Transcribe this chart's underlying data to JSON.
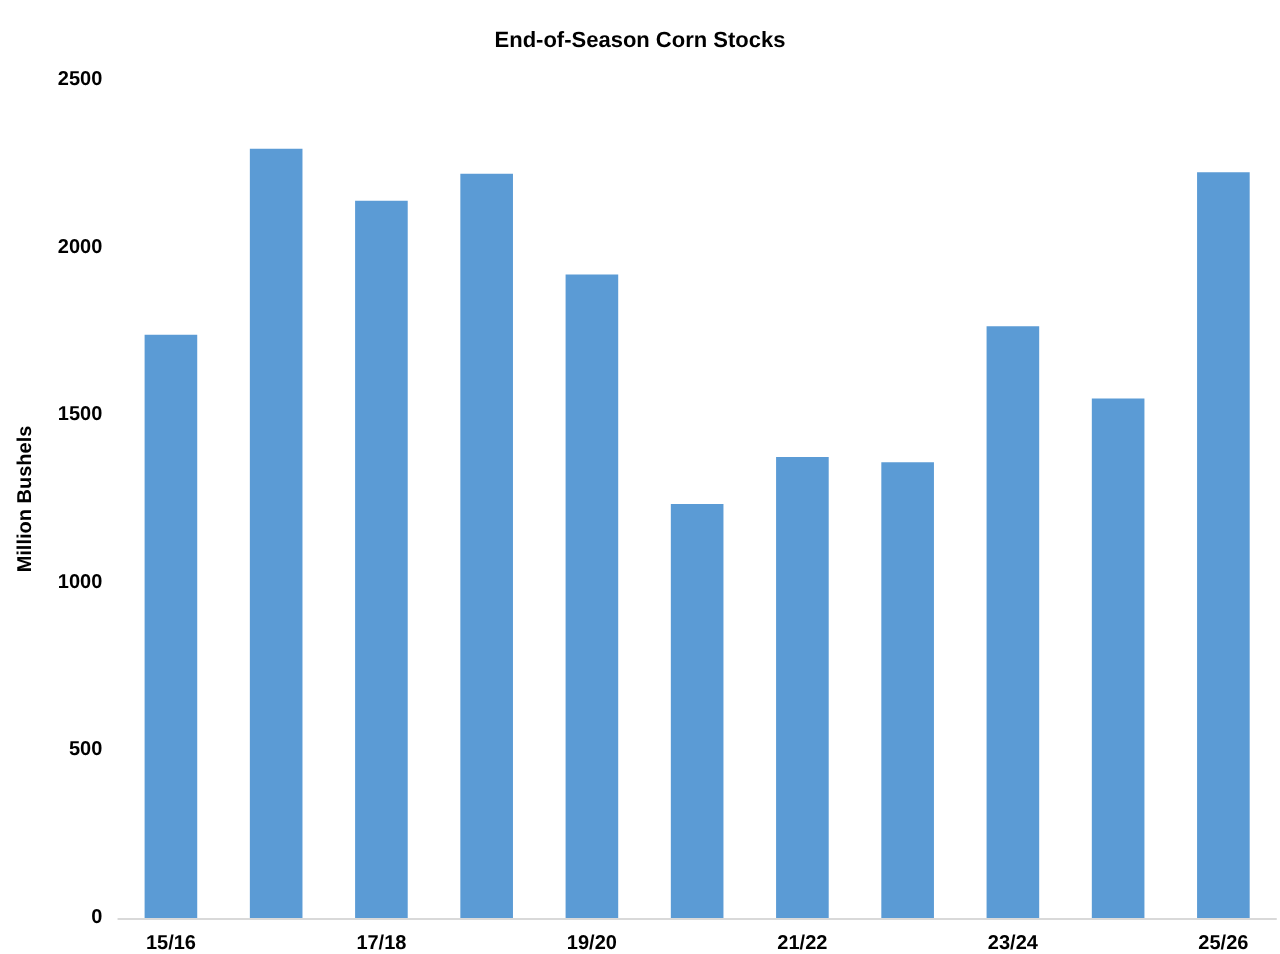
{
  "chart_data": {
    "type": "bar",
    "title": "End-of-Season Corn Stocks",
    "ylabel": "Million Bushels",
    "categories": [
      "15/16",
      null,
      "17/18",
      null,
      "19/20",
      null,
      "21/22",
      null,
      "23/24",
      null,
      "25/26"
    ],
    "values": [
      1740,
      2295,
      2140,
      2220,
      1920,
      1235,
      1375,
      1360,
      1765,
      1550,
      2225
    ],
    "color": "#5b9bd5",
    "ylim": [
      0,
      2500
    ],
    "yticks": [
      0,
      500,
      1000,
      1500,
      2000,
      2500
    ],
    "grid": false
  }
}
